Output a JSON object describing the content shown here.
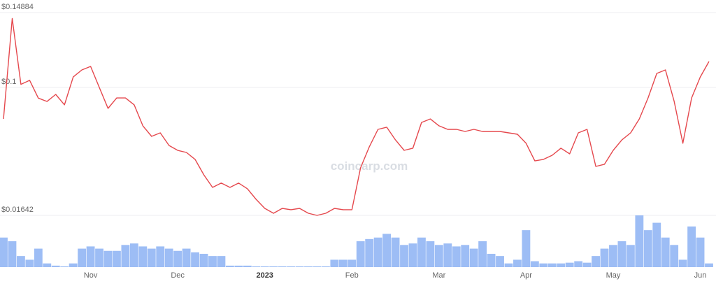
{
  "chart_data": {
    "type": "line",
    "watermark": "coincarp.com",
    "categories": [
      null,
      null,
      null,
      null,
      null,
      null,
      null,
      null,
      null,
      null,
      "Nov",
      null,
      null,
      null,
      null,
      null,
      null,
      null,
      null,
      null,
      "Dec",
      null,
      null,
      null,
      null,
      null,
      null,
      null,
      null,
      null,
      "2023",
      null,
      null,
      null,
      null,
      null,
      null,
      null,
      null,
      null,
      "Feb",
      null,
      null,
      null,
      null,
      null,
      null,
      null,
      null,
      null,
      "Mar",
      null,
      null,
      null,
      null,
      null,
      null,
      null,
      null,
      null,
      "Apr",
      null,
      null,
      null,
      null,
      null,
      null,
      null,
      null,
      null,
      "May",
      null,
      null,
      null,
      null,
      null,
      null,
      null,
      null,
      null,
      "Jun",
      null
    ],
    "series": [
      {
        "type": "line",
        "color": "#e5484d",
        "values": [
          0.0794,
          0.145,
          0.102,
          0.1046,
          0.093,
          0.0908,
          0.0954,
          0.0886,
          0.1068,
          0.1114,
          0.1137,
          0.1,
          0.0863,
          0.0931,
          0.0931,
          0.0886,
          0.0749,
          0.068,
          0.0703,
          0.0621,
          0.0589,
          0.0575,
          0.053,
          0.0429,
          0.0347,
          0.0375,
          0.0347,
          0.0375,
          0.0338,
          0.0269,
          0.021,
          0.0178,
          0.021,
          0.0201,
          0.021,
          0.0178,
          0.0164,
          0.0178,
          0.021,
          0.0201,
          0.0201,
          0.0475,
          0.0612,
          0.0726,
          0.074,
          0.0657,
          0.0589,
          0.0603,
          0.0771,
          0.0794,
          0.0749,
          0.0726,
          0.0726,
          0.0712,
          0.0726,
          0.0712,
          0.0712,
          0.0712,
          0.0703,
          0.0694,
          0.0635,
          0.052,
          0.053,
          0.0557,
          0.0603,
          0.0566,
          0.0703,
          0.0726,
          0.0484,
          0.0498,
          0.0589,
          0.0657,
          0.0703,
          0.0794,
          0.0931,
          0.1091,
          0.1114,
          0.0908,
          0.0635,
          0.0931,
          0.1068,
          0.1169
        ]
      },
      {
        "type": "bar",
        "color": "#9dbdf5",
        "values": [
          40,
          35,
          15,
          10,
          25,
          5,
          2,
          1,
          5,
          25,
          28,
          25,
          22,
          22,
          30,
          32,
          28,
          25,
          28,
          25,
          22,
          25,
          20,
          18,
          15,
          15,
          2,
          2,
          2,
          1,
          1,
          1,
          1,
          1,
          1,
          1,
          1,
          1,
          10,
          10,
          10,
          35,
          38,
          40,
          45,
          40,
          30,
          32,
          40,
          35,
          30,
          32,
          28,
          30,
          25,
          35,
          18,
          15,
          5,
          10,
          50,
          8,
          5,
          5,
          5,
          6,
          8,
          6,
          15,
          25,
          30,
          35,
          30,
          70,
          50,
          60,
          40,
          30,
          10,
          55,
          40,
          5
        ]
      }
    ],
    "ylim": [
      0.01642,
      0.14884
    ],
    "yticks": [
      {
        "value": 0.01642,
        "label": "$0.01642"
      },
      {
        "value": 0.1,
        "label": "$0.1"
      },
      {
        "value": 0.14884,
        "label": "$0.14884"
      }
    ],
    "grid": true
  }
}
